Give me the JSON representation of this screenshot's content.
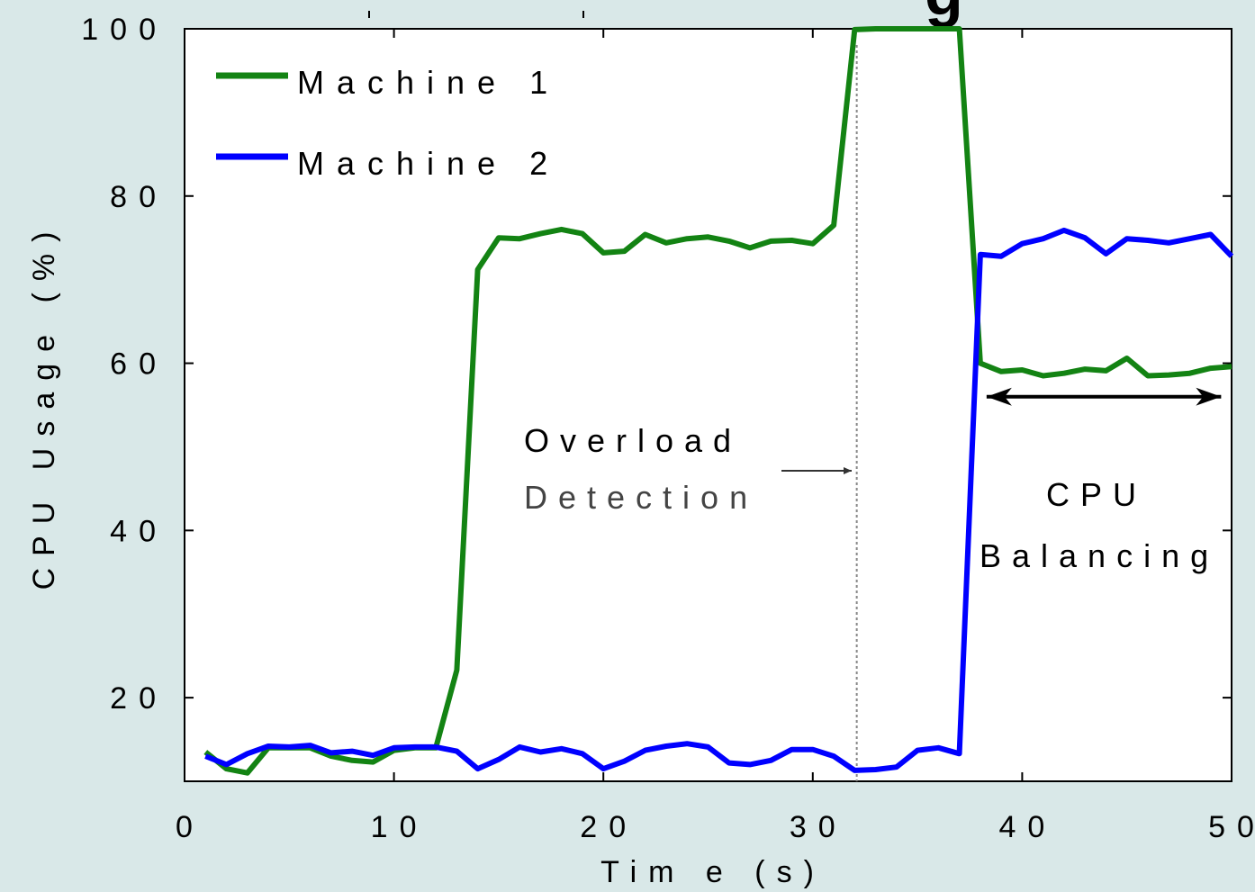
{
  "chart_data": {
    "type": "line",
    "title_fragment": "g",
    "xlabel": "Tim e (s)",
    "ylabel": "CPU Usage (%)",
    "xlim": [
      0,
      50
    ],
    "ylim": [
      10,
      100
    ],
    "xticks": [
      0,
      10,
      20,
      30,
      40,
      50
    ],
    "xtick_labels": [
      "0",
      "10",
      "20",
      "30",
      "40",
      "50"
    ],
    "yticks": [
      20,
      40,
      60,
      80,
      100
    ],
    "ytick_labels": [
      "20",
      "40",
      "60",
      "80",
      "100"
    ],
    "grid": false,
    "legend_position": "top-left",
    "series": [
      {
        "name": "Machine 1",
        "color": "#138313",
        "points": [
          [
            1,
            13.5
          ],
          [
            2,
            11.5
          ],
          [
            3,
            11
          ],
          [
            4,
            14
          ],
          [
            5,
            14
          ],
          [
            6,
            14
          ],
          [
            7,
            13
          ],
          [
            8,
            12.5
          ],
          [
            9,
            12.3
          ],
          [
            10,
            13.7
          ],
          [
            11,
            14
          ],
          [
            12,
            14
          ],
          [
            13,
            23.3
          ],
          [
            14,
            71.2
          ],
          [
            15,
            75
          ],
          [
            16,
            74.9
          ],
          [
            17,
            75.5
          ],
          [
            18,
            76
          ],
          [
            19,
            75.5
          ],
          [
            20,
            73.2
          ],
          [
            21,
            73.4
          ],
          [
            22,
            75.4
          ],
          [
            23,
            74.4
          ],
          [
            24,
            74.9
          ],
          [
            25,
            75.1
          ],
          [
            26,
            74.6
          ],
          [
            27,
            73.8
          ],
          [
            28,
            74.6
          ],
          [
            29,
            74.7
          ],
          [
            30,
            74.3
          ],
          [
            31,
            76.5
          ],
          [
            32,
            99.9
          ],
          [
            33,
            100
          ],
          [
            34,
            100
          ],
          [
            35,
            100
          ],
          [
            36,
            100
          ],
          [
            37,
            100
          ],
          [
            38,
            60
          ],
          [
            39,
            59
          ],
          [
            40,
            59.2
          ],
          [
            41,
            58.5
          ],
          [
            42,
            58.8
          ],
          [
            43,
            59.3
          ],
          [
            44,
            59.1
          ],
          [
            45,
            60.6
          ],
          [
            46,
            58.5
          ],
          [
            47,
            58.6
          ],
          [
            48,
            58.8
          ],
          [
            49,
            59.4
          ],
          [
            50,
            59.6
          ]
        ]
      },
      {
        "name": "Machine 2",
        "color": "#0000ff",
        "points": [
          [
            1,
            13
          ],
          [
            2,
            12
          ],
          [
            3,
            13.3
          ],
          [
            4,
            14.2
          ],
          [
            5,
            14.1
          ],
          [
            6,
            14.3
          ],
          [
            7,
            13.4
          ],
          [
            8,
            13.6
          ],
          [
            9,
            13.1
          ],
          [
            10,
            14
          ],
          [
            11,
            14.1
          ],
          [
            12,
            14.1
          ],
          [
            13,
            13.6
          ],
          [
            14,
            11.5
          ],
          [
            15,
            12.6
          ],
          [
            16,
            14.1
          ],
          [
            17,
            13.5
          ],
          [
            18,
            13.9
          ],
          [
            19,
            13.3
          ],
          [
            20,
            11.5
          ],
          [
            21,
            12.4
          ],
          [
            22,
            13.7
          ],
          [
            23,
            14.2
          ],
          [
            24,
            14.5
          ],
          [
            25,
            14.1
          ],
          [
            26,
            12.2
          ],
          [
            27,
            12
          ],
          [
            28,
            12.5
          ],
          [
            29,
            13.8
          ],
          [
            30,
            13.8
          ],
          [
            31,
            13
          ],
          [
            32,
            11.3
          ],
          [
            33,
            11.4
          ],
          [
            34,
            11.7
          ],
          [
            35,
            13.7
          ],
          [
            36,
            14
          ],
          [
            37,
            13.3
          ],
          [
            38,
            73
          ],
          [
            39,
            72.8
          ],
          [
            40,
            74.3
          ],
          [
            41,
            74.9
          ],
          [
            42,
            75.9
          ],
          [
            43,
            75
          ],
          [
            44,
            73.1
          ],
          [
            45,
            74.9
          ],
          [
            46,
            74.7
          ],
          [
            47,
            74.4
          ],
          [
            48,
            74.9
          ],
          [
            49,
            75.4
          ],
          [
            50,
            72.8
          ]
        ]
      }
    ],
    "annotations": {
      "overload_line_x": 32.1,
      "overload_line1": "Overload",
      "overload_line2": "Detection",
      "balancing_range": [
        38.3,
        49.5
      ],
      "balancing_y": 56,
      "balancing_line1": "CPU",
      "balancing_line2": "Balancing"
    }
  }
}
